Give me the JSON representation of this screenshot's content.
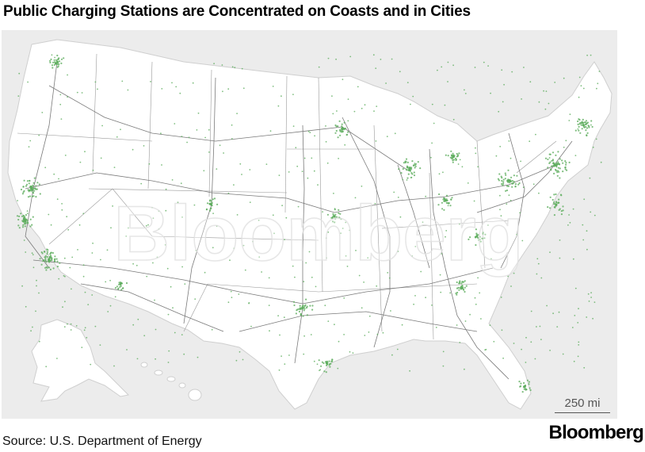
{
  "title": "Public Charging Stations are Concentrated on Coasts and in Cities",
  "scale_label": "250 mi",
  "source": "Source: U.S. Department of Energy",
  "brand": "Bloomberg",
  "watermark": "Bloomberg",
  "colors": {
    "station": "#5fae5f",
    "road": "#7a7a7a",
    "land": "#ffffff",
    "water": "#ececec",
    "state_border": "#9a9a9a"
  }
}
